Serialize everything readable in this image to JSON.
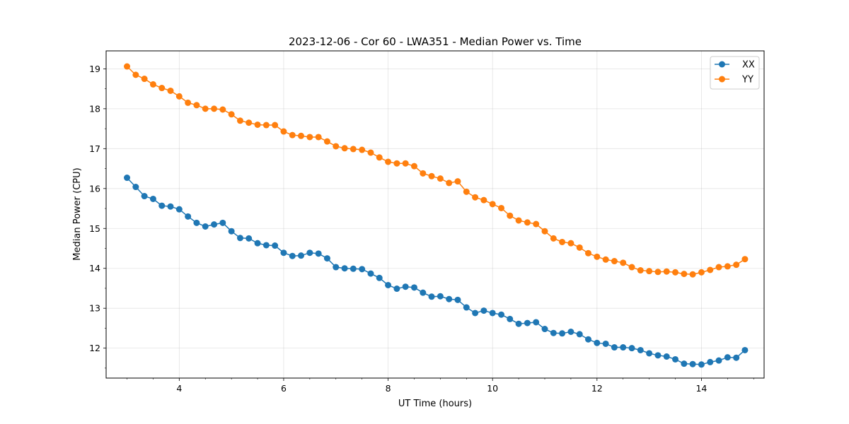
{
  "chart_data": {
    "type": "line",
    "title": "2023-12-06 - Cor 60 - LWA351 - Median Power vs. Time",
    "xlabel": "UT Time (hours)",
    "ylabel": "Median Power (CPU)",
    "xlim": [
      2.6,
      15.2
    ],
    "ylim": [
      11.25,
      19.45
    ],
    "xticks": [
      4,
      6,
      8,
      10,
      12,
      14
    ],
    "xtick_labels": [
      "4",
      "6",
      "8",
      "10",
      "12",
      "14"
    ],
    "yticks": [
      12,
      13,
      14,
      15,
      16,
      17,
      18,
      19
    ],
    "ytick_labels": [
      "12",
      "13",
      "14",
      "15",
      "16",
      "17",
      "18",
      "19"
    ],
    "grid": true,
    "legend_position": "top-right",
    "x": [
      3.0,
      3.167,
      3.333,
      3.5,
      3.667,
      3.833,
      4.0,
      4.167,
      4.333,
      4.5,
      4.667,
      4.833,
      5.0,
      5.167,
      5.333,
      5.5,
      5.667,
      5.833,
      6.0,
      6.167,
      6.333,
      6.5,
      6.667,
      6.833,
      7.0,
      7.167,
      7.333,
      7.5,
      7.667,
      7.833,
      8.0,
      8.167,
      8.333,
      8.5,
      8.667,
      8.833,
      9.0,
      9.167,
      9.333,
      9.5,
      9.667,
      9.833,
      10.0,
      10.167,
      10.333,
      10.5,
      10.667,
      10.833,
      11.0,
      11.167,
      11.333,
      11.5,
      11.667,
      11.833,
      12.0,
      12.167,
      12.333,
      12.5,
      12.667,
      12.833,
      13.0,
      13.167,
      13.333,
      13.5,
      13.667,
      13.833,
      14.0,
      14.167,
      14.333,
      14.5,
      14.667,
      14.833
    ],
    "series": [
      {
        "name": "XX",
        "color": "#1f77b4",
        "values": [
          16.27,
          16.04,
          15.81,
          15.74,
          15.57,
          15.55,
          15.48,
          15.3,
          15.14,
          15.05,
          15.1,
          15.14,
          14.93,
          14.76,
          14.75,
          14.63,
          14.58,
          14.57,
          14.39,
          14.31,
          14.32,
          14.39,
          14.37,
          14.25,
          14.03,
          14.0,
          13.99,
          13.98,
          13.87,
          13.76,
          13.58,
          13.49,
          13.54,
          13.52,
          13.39,
          13.29,
          13.3,
          13.23,
          13.21,
          13.02,
          12.88,
          12.94,
          12.88,
          12.84,
          12.73,
          12.61,
          12.63,
          12.65,
          12.48,
          12.38,
          12.37,
          12.41,
          12.35,
          12.22,
          12.13,
          12.11,
          12.02,
          12.02,
          12.0,
          11.95,
          11.87,
          11.82,
          11.79,
          11.72,
          11.61,
          11.6,
          11.59,
          11.65,
          11.69,
          11.77,
          11.76,
          11.95
        ]
      },
      {
        "name": "YY",
        "color": "#ff7f0e",
        "values": [
          19.06,
          18.85,
          18.75,
          18.61,
          18.52,
          18.45,
          18.31,
          18.15,
          18.09,
          18.0,
          18.0,
          17.98,
          17.86,
          17.7,
          17.65,
          17.6,
          17.59,
          17.59,
          17.43,
          17.34,
          17.32,
          17.29,
          17.29,
          17.18,
          17.06,
          17.01,
          16.99,
          16.97,
          16.9,
          16.78,
          16.67,
          16.63,
          16.63,
          16.56,
          16.38,
          16.31,
          16.25,
          16.14,
          16.18,
          15.92,
          15.78,
          15.71,
          15.61,
          15.51,
          15.32,
          15.2,
          15.15,
          15.11,
          14.93,
          14.75,
          14.66,
          14.63,
          14.52,
          14.38,
          14.29,
          14.22,
          14.18,
          14.14,
          14.03,
          13.95,
          13.93,
          13.91,
          13.92,
          13.9,
          13.86,
          13.85,
          13.9,
          13.96,
          14.03,
          14.05,
          14.09,
          14.23
        ]
      }
    ]
  }
}
